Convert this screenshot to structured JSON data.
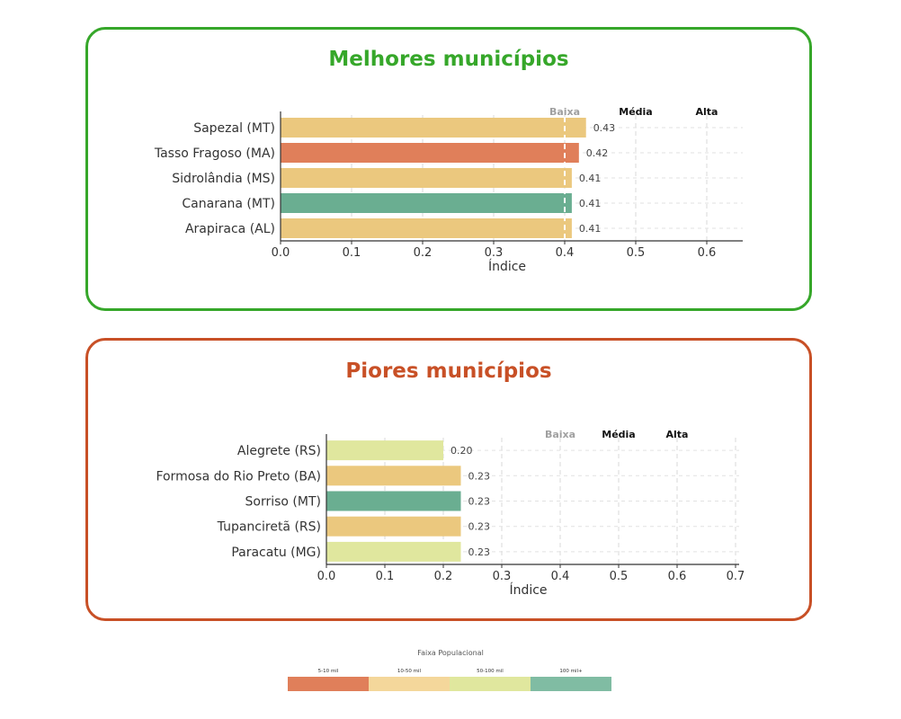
{
  "best": {
    "title": "Melhores municípios",
    "xlabel": "Índice",
    "xticks": [
      "0.0",
      "0.1",
      "0.2",
      "0.3",
      "0.4",
      "0.5",
      "0.6"
    ],
    "bands": [
      "Baixa",
      "Média",
      "Alta"
    ],
    "bars": [
      {
        "label": "Sapezal (MT)",
        "value": 0.43,
        "value_label": "0.43",
        "color": "#ebc87e"
      },
      {
        "label": "Tasso Fragoso (MA)",
        "value": 0.42,
        "value_label": "0.42",
        "color": "#e07f5a"
      },
      {
        "label": "Sidrolândia (MS)",
        "value": 0.41,
        "value_label": "0.41",
        "color": "#ebc87e"
      },
      {
        "label": "Canarana (MT)",
        "value": 0.41,
        "value_label": "0.41",
        "color": "#6aae91"
      },
      {
        "label": "Arapiraca (AL)",
        "value": 0.41,
        "value_label": "0.41",
        "color": "#ebc87e"
      }
    ]
  },
  "worst": {
    "title": "Piores municípios",
    "xlabel": "Índice",
    "xticks": [
      "0.0",
      "0.1",
      "0.2",
      "0.3",
      "0.4",
      "0.5",
      "0.6",
      "0.7"
    ],
    "bands": [
      "Baixa",
      "Média",
      "Alta"
    ],
    "bars": [
      {
        "label": "Alegrete (RS)",
        "value": 0.2,
        "value_label": "0.20",
        "color": "#e0e79e"
      },
      {
        "label": "Formosa do Rio Preto (BA)",
        "value": 0.23,
        "value_label": "0.23",
        "color": "#ebc87e"
      },
      {
        "label": "Sorriso (MT)",
        "value": 0.23,
        "value_label": "0.23",
        "color": "#6aae91"
      },
      {
        "label": "Tupanciretã (RS)",
        "value": 0.23,
        "value_label": "0.23",
        "color": "#ebc87e"
      },
      {
        "label": "Paracatu (MG)",
        "value": 0.23,
        "value_label": "0.23",
        "color": "#e0e79e"
      }
    ]
  },
  "legend": {
    "title": "Faixa Populacional",
    "items": [
      {
        "label": "5-10 mil",
        "color": "#e07f5a"
      },
      {
        "label": "10-50 mil",
        "color": "#f4d79b"
      },
      {
        "label": "50-100 mil",
        "color": "#e0e79e"
      },
      {
        "label": "100 mil+",
        "color": "#80bca3"
      }
    ]
  },
  "chart_data": [
    {
      "type": "bar",
      "orientation": "horizontal",
      "title": "Melhores municípios",
      "xlabel": "Índice",
      "categories": [
        "Sapezal (MT)",
        "Tasso Fragoso (MA)",
        "Sidrolândia (MS)",
        "Canarana (MT)",
        "Arapiraca (AL)"
      ],
      "values": [
        0.43,
        0.42,
        0.41,
        0.41,
        0.41
      ],
      "xlim": [
        0,
        0.65
      ],
      "reference_lines": [
        {
          "label": "Baixa",
          "value": 0.4
        }
      ],
      "annotations": [
        "Baixa",
        "Média",
        "Alta"
      ],
      "grid": true
    },
    {
      "type": "bar",
      "orientation": "horizontal",
      "title": "Piores municípios",
      "xlabel": "Índice",
      "categories": [
        "Alegrete (RS)",
        "Formosa do Rio Preto (BA)",
        "Sorriso (MT)",
        "Tupanciretã (RS)",
        "Paracatu (MG)"
      ],
      "values": [
        0.2,
        0.23,
        0.23,
        0.23,
        0.23
      ],
      "xlim": [
        0,
        0.7
      ],
      "annotations": [
        "Baixa",
        "Média",
        "Alta"
      ],
      "grid": true
    }
  ]
}
